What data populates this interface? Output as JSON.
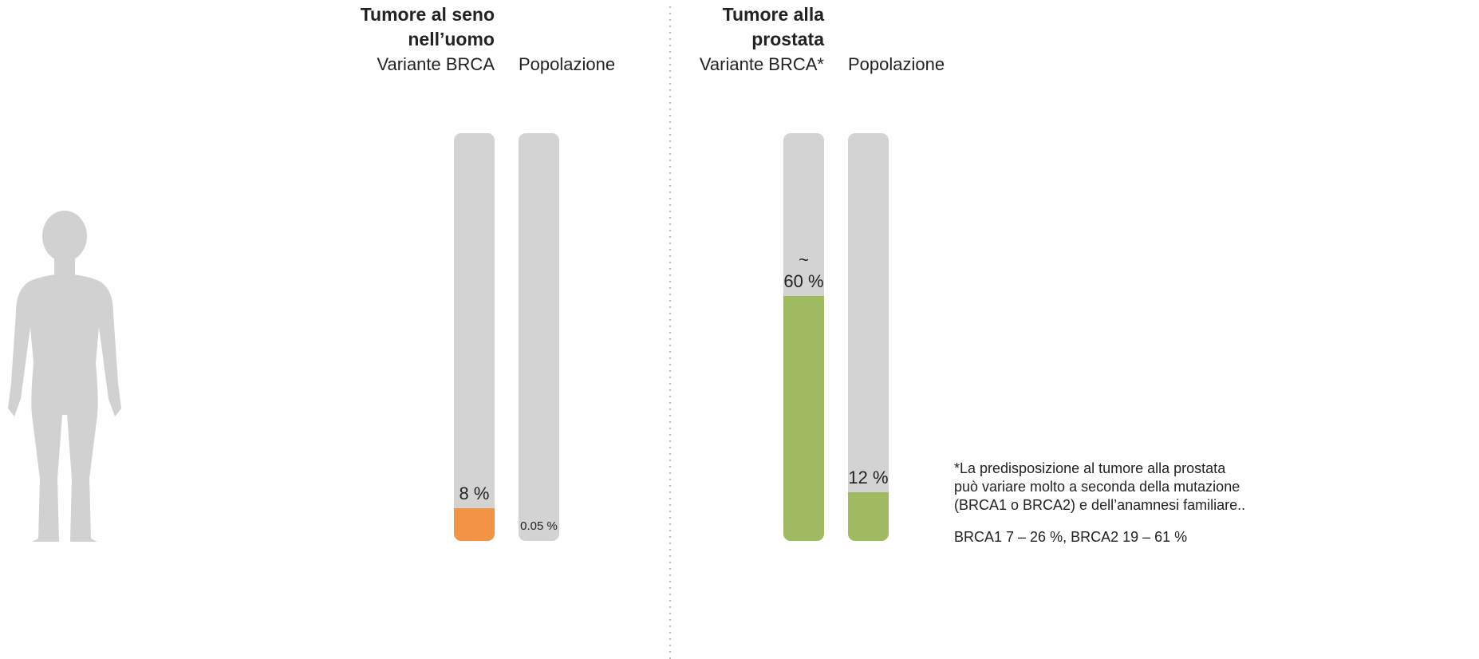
{
  "chart_data": [
    {
      "type": "bar",
      "title": "Tumore al seno nell’uomo",
      "categories": [
        "Variante BRCA",
        "Popolazione"
      ],
      "values": [
        8,
        0.05
      ],
      "value_labels": [
        "8 %",
        "0.05 %"
      ],
      "color": "#f39445",
      "track_color": "#d2d3d2",
      "ylim": [
        0,
        100
      ]
    },
    {
      "type": "bar",
      "title": "Tumore alla prostata",
      "categories": [
        "Variante BRCA*",
        "Popolazione"
      ],
      "values": [
        60,
        12
      ],
      "value_labels": [
        "~\n60 %",
        "12 %"
      ],
      "color": "#9fba60",
      "track_color": "#d2d3d2",
      "ylim": [
        0,
        100
      ],
      "footnote": "*La predisposizione al tumore alla prostata può variare molto a seconda della mutazione (BRCA1 o BRCA2) e dell’anamnesi familiare..",
      "annotation": "BRCA1 7 – 26 %, BRCA2 19 – 61 %"
    }
  ]
}
